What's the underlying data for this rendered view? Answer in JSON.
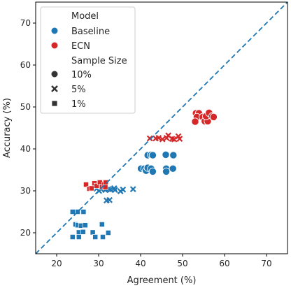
{
  "chart_data": {
    "type": "scatter",
    "xlabel": "Agreement (%)",
    "ylabel": "Accuracy (%)",
    "xlim": [
      15,
      75
    ],
    "ylim": [
      15,
      75
    ],
    "xticks": [
      "20",
      "30",
      "40",
      "50",
      "60",
      "70"
    ],
    "yticks": [
      "20",
      "30",
      "40",
      "50",
      "60",
      "70"
    ],
    "grid": false,
    "reference_line": {
      "style": "dashed",
      "from": [
        15,
        15
      ],
      "to": [
        75,
        75
      ],
      "color": "#1f77b4"
    },
    "legend": {
      "placement": "top-left",
      "hue_title": "Model",
      "hue_entries": [
        {
          "label": "Baseline",
          "color": "#1f77b4"
        },
        {
          "label": "ECN",
          "color": "#d62728"
        }
      ],
      "style_title": "Sample Size",
      "style_entries": [
        {
          "label": "10%",
          "marker": "circle"
        },
        {
          "label": "5%",
          "marker": "x"
        },
        {
          "label": "1%",
          "marker": "square"
        }
      ]
    },
    "series": [
      {
        "model": "Baseline",
        "sample": "10%",
        "color": "#1f77b4",
        "marker": "circle",
        "points": [
          [
            40.1,
            35.3
          ],
          [
            40.9,
            35.3
          ],
          [
            41.3,
            34.8
          ],
          [
            41.7,
            35.5
          ],
          [
            42.5,
            35.3
          ],
          [
            42.9,
            34.6
          ],
          [
            41.7,
            38.5
          ],
          [
            42.5,
            38.6
          ],
          [
            42.9,
            38.5
          ],
          [
            46.0,
            38.6
          ],
          [
            47.8,
            38.5
          ],
          [
            46.1,
            35.3
          ],
          [
            46.1,
            34.6
          ],
          [
            47.7,
            35.3
          ]
        ]
      },
      {
        "model": "Baseline",
        "sample": "5%",
        "color": "#1f77b4",
        "marker": "x",
        "points": [
          [
            29.5,
            30.5
          ],
          [
            30.1,
            30.0
          ],
          [
            30.6,
            30.4
          ],
          [
            31.6,
            30.2
          ],
          [
            32.3,
            30.4
          ],
          [
            32.8,
            30.3
          ],
          [
            33.7,
            30.6
          ],
          [
            33.9,
            30.2
          ],
          [
            35.2,
            29.9
          ],
          [
            35.8,
            30.3
          ],
          [
            38.2,
            30.4
          ],
          [
            31.9,
            27.7
          ],
          [
            32.6,
            27.8
          ]
        ]
      },
      {
        "model": "Baseline",
        "sample": "1%",
        "color": "#1f77b4",
        "marker": "square",
        "points": [
          [
            23.8,
            25.0
          ],
          [
            25.0,
            25.0
          ],
          [
            26.4,
            25.0
          ],
          [
            24.5,
            22.0
          ],
          [
            25.0,
            21.8
          ],
          [
            25.8,
            21.7
          ],
          [
            26.8,
            21.8
          ],
          [
            30.8,
            22.0
          ],
          [
            25.3,
            20.1
          ],
          [
            26.3,
            20.2
          ],
          [
            28.6,
            20.1
          ],
          [
            32.3,
            20.0
          ],
          [
            23.8,
            19.0
          ],
          [
            25.3,
            19.0
          ],
          [
            29.2,
            19.0
          ],
          [
            31.0,
            19.0
          ]
        ]
      },
      {
        "model": "ECN",
        "sample": "10%",
        "color": "#d62728",
        "marker": "circle",
        "points": [
          [
            53.2,
            48.5
          ],
          [
            53.9,
            48.5
          ],
          [
            53.4,
            47.6
          ],
          [
            53.0,
            46.5
          ],
          [
            54.8,
            47.6
          ],
          [
            55.3,
            46.6
          ],
          [
            56.0,
            46.6
          ],
          [
            55.6,
            47.8
          ],
          [
            56.3,
            48.6
          ],
          [
            57.1,
            47.8
          ],
          [
            57.4,
            47.6
          ]
        ]
      },
      {
        "model": "ECN",
        "sample": "5%",
        "color": "#d62728",
        "marker": "x",
        "points": [
          [
            42.2,
            42.5
          ],
          [
            43.6,
            42.5
          ],
          [
            44.3,
            42.6
          ],
          [
            45.2,
            42.3
          ],
          [
            46.2,
            42.6
          ],
          [
            46.6,
            43.2
          ],
          [
            47.5,
            42.4
          ],
          [
            48.0,
            42.3
          ],
          [
            49.0,
            43.0
          ],
          [
            49.3,
            42.4
          ],
          [
            30.0,
            31.3
          ],
          [
            31.4,
            31.6
          ]
        ]
      },
      {
        "model": "ECN",
        "sample": "1%",
        "color": "#d62728",
        "marker": "square",
        "points": [
          [
            27.0,
            31.5
          ],
          [
            27.8,
            30.5
          ],
          [
            28.3,
            30.6
          ],
          [
            29.0,
            31.8
          ],
          [
            29.5,
            31.2
          ],
          [
            30.3,
            32.0
          ],
          [
            30.8,
            31.0
          ],
          [
            31.3,
            31.5
          ],
          [
            31.7,
            32.0
          ],
          [
            31.6,
            30.9
          ]
        ]
      }
    ]
  }
}
